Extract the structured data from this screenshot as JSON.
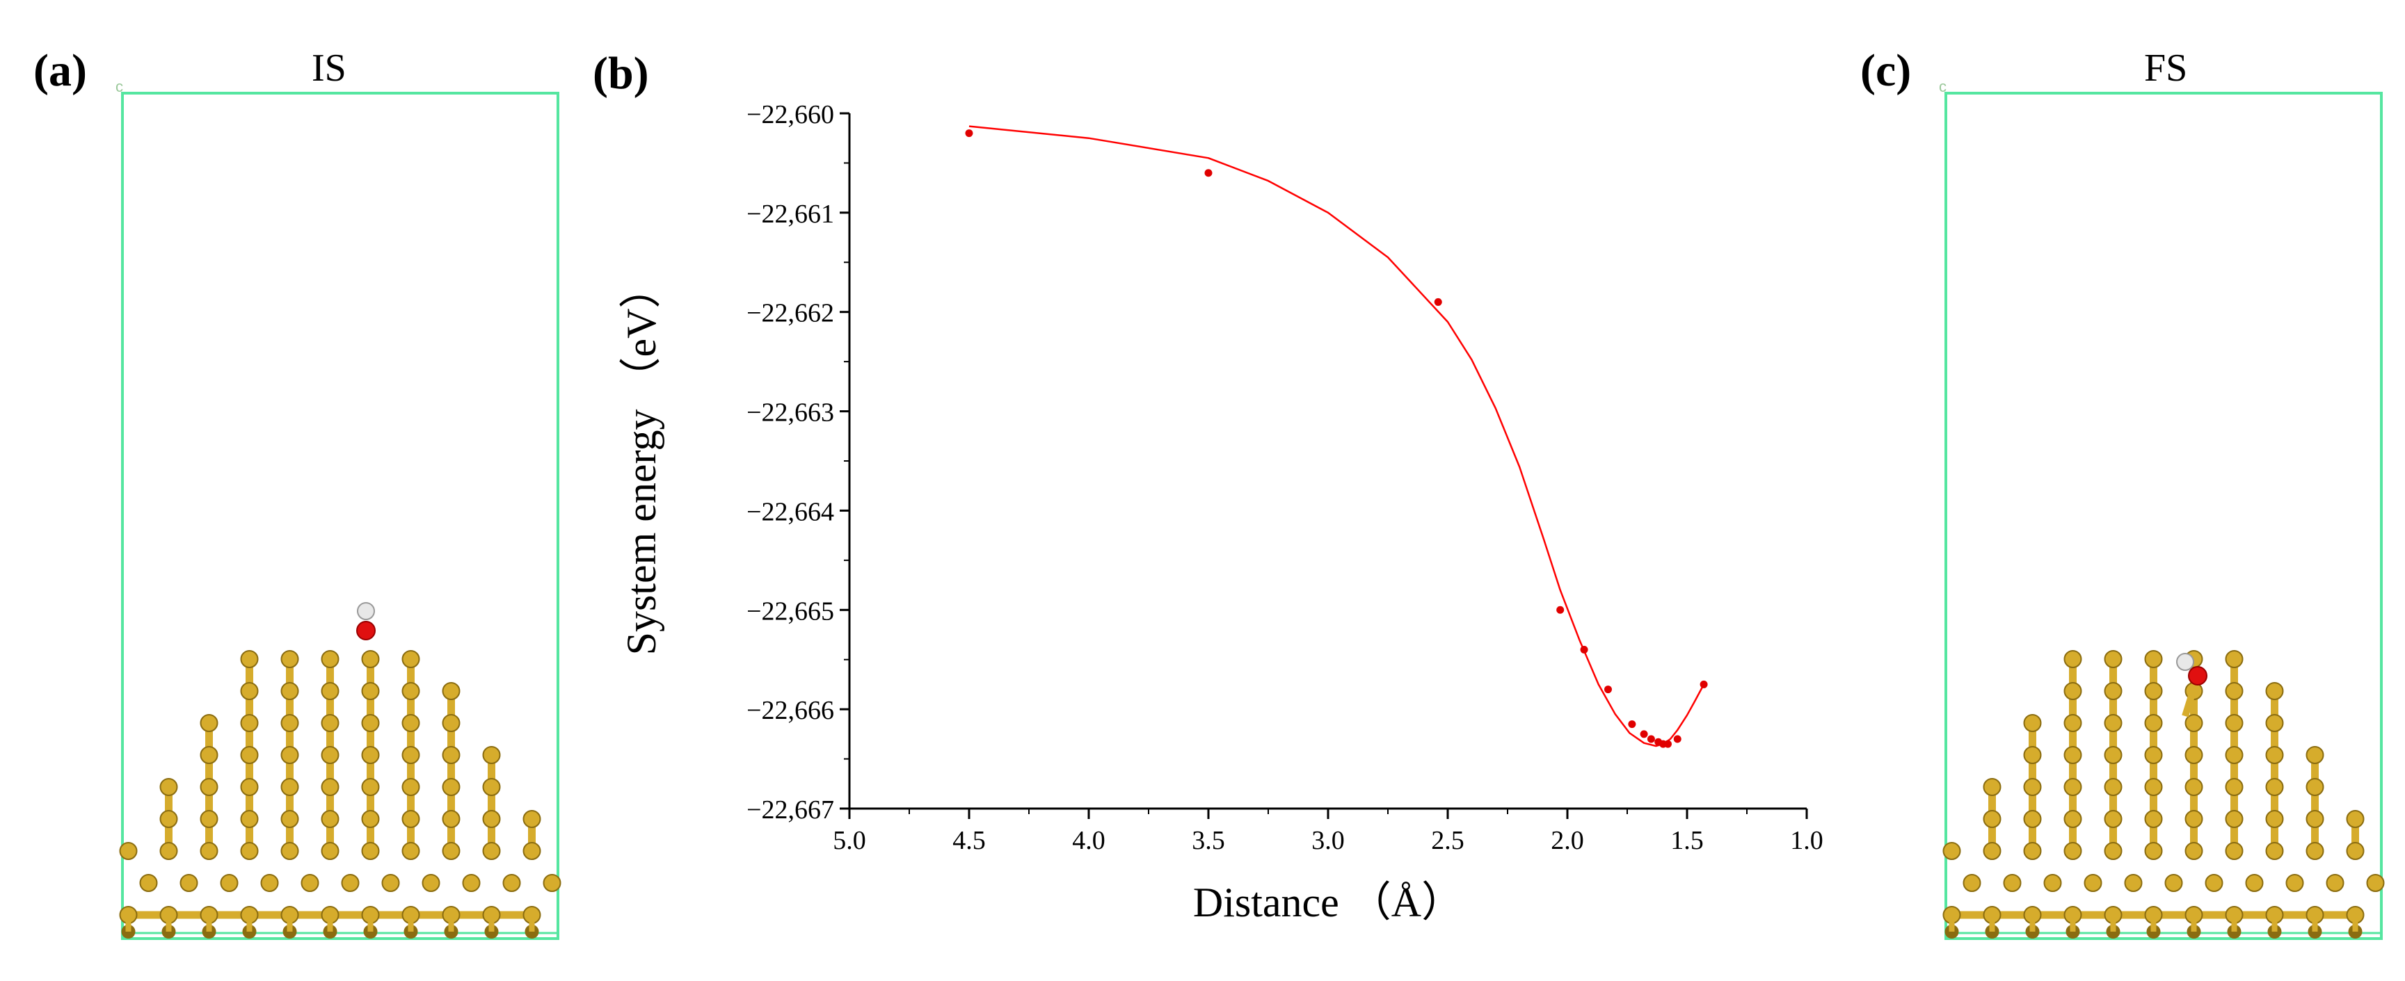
{
  "panels": {
    "a": {
      "label": "(a)",
      "title": "IS"
    },
    "b": {
      "label": "(b)"
    },
    "c": {
      "label": "(c)",
      "title": "FS"
    }
  },
  "colors": {
    "cell_box": "#55e6a0",
    "atom_gold": "#d6ac2c",
    "atom_gold_dark": "#8a6c10",
    "atom_oxygen": "#e01010",
    "atom_hydrogen": "#e8e8e8",
    "curve": "#ff0000",
    "points": "#e00000"
  },
  "chart_data": {
    "type": "scatter",
    "title": "",
    "xlabel": "Distance （Å）",
    "ylabel": "System energy （eV）",
    "xlim": [
      5.0,
      1.0
    ],
    "ylim": [
      -22667,
      -22660
    ],
    "x_reversed": true,
    "x_ticks": [
      5.0,
      4.5,
      4.0,
      3.5,
      3.0,
      2.5,
      2.0,
      1.5,
      1.0
    ],
    "x_tick_labels": [
      "5.0",
      "4.5",
      "4.0",
      "3.5",
      "3.0",
      "2.5",
      "2.0",
      "1.5",
      "1.0"
    ],
    "y_ticks": [
      -22660,
      -22661,
      -22662,
      -22663,
      -22664,
      -22665,
      -22666,
      -22667
    ],
    "y_tick_labels": [
      "−22,660",
      "−22,661",
      "−22,662",
      "−22,663",
      "−22,664",
      "−22,665",
      "−22,666",
      "−22,667"
    ],
    "grid": false,
    "series": [
      {
        "kind": "points",
        "x": [
          4.5,
          3.5,
          2.54,
          2.03,
          1.93,
          1.83,
          1.73,
          1.68,
          1.65,
          1.62,
          1.6,
          1.58,
          1.54,
          1.43
        ],
        "y": [
          -22660.2,
          -22660.6,
          -22661.9,
          -22665.0,
          -22665.4,
          -22665.8,
          -22666.15,
          -22666.25,
          -22666.3,
          -22666.33,
          -22666.35,
          -22666.35,
          -22666.3,
          -22665.75
        ]
      },
      {
        "kind": "fit-line",
        "x": [
          4.5,
          4.0,
          3.5,
          3.25,
          3.0,
          2.75,
          2.5,
          2.4,
          2.3,
          2.2,
          2.1,
          2.03,
          1.95,
          1.87,
          1.8,
          1.74,
          1.68,
          1.63,
          1.6,
          1.57,
          1.54,
          1.5,
          1.47,
          1.43
        ],
        "y": [
          -22660.13,
          -22660.25,
          -22660.45,
          -22660.68,
          -22661.0,
          -22661.45,
          -22662.1,
          -22662.48,
          -22662.97,
          -22663.56,
          -22664.28,
          -22664.8,
          -22665.3,
          -22665.75,
          -22666.05,
          -22666.24,
          -22666.34,
          -22666.37,
          -22666.35,
          -22666.3,
          -22666.21,
          -22666.06,
          -22665.93,
          -22665.75
        ]
      }
    ]
  }
}
